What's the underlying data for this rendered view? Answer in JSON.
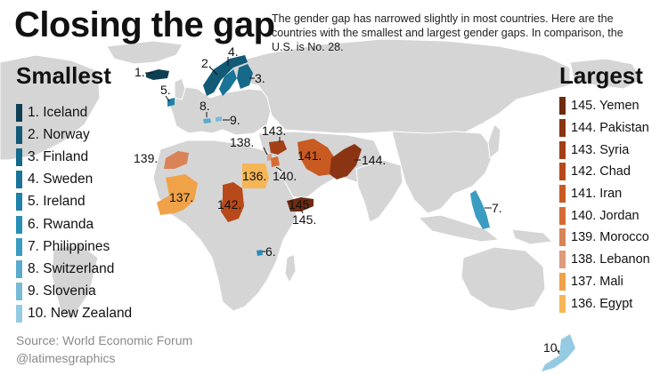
{
  "title": "Closing the gap",
  "intro": "The gender gap has narrowed slightly in most countries. Here are the countries with the smallest and largest gender gaps. In comparison, the U.S. is No. 28.",
  "smallest": {
    "heading": "Smallest",
    "items": [
      {
        "label": "1. Iceland",
        "color": "#0e3f55"
      },
      {
        "label": "2. Norway",
        "color": "#125a76"
      },
      {
        "label": "3. Finland",
        "color": "#17698a"
      },
      {
        "label": "4. Sweden",
        "color": "#1a7497"
      },
      {
        "label": "5. Ireland",
        "color": "#1f82a8"
      },
      {
        "label": "6. Rwanda",
        "color": "#288fb6"
      },
      {
        "label": "7. Philippines",
        "color": "#3b9cc2"
      },
      {
        "label": "8. Switzerland",
        "color": "#5aaacb"
      },
      {
        "label": "9. Slovenia",
        "color": "#79bad6"
      },
      {
        "label": "10. New Zealand",
        "color": "#95cbe2"
      }
    ]
  },
  "largest": {
    "heading": "Largest",
    "items": [
      {
        "label": "145. Yemen",
        "color": "#6f2a10"
      },
      {
        "label": "144. Pakistan",
        "color": "#8a3413"
      },
      {
        "label": "143. Syria",
        "color": "#a33f15"
      },
      {
        "label": "142. Chad",
        "color": "#b8491a"
      },
      {
        "label": "141. Iran",
        "color": "#c85a22"
      },
      {
        "label": "140. Jordan",
        "color": "#d66c34"
      },
      {
        "label": "139. Morocco",
        "color": "#d98357"
      },
      {
        "label": "138. Lebanon",
        "color": "#de9b7c"
      },
      {
        "label": "137. Mali",
        "color": "#f0a248"
      },
      {
        "label": "136. Egypt",
        "color": "#f6b656"
      }
    ]
  },
  "map_labels": {
    "iceland": "1.",
    "norway": "2.",
    "finland": "3.",
    "sweden": "4.",
    "ireland": "5.",
    "rwanda": "6.",
    "philippines": "7.",
    "switzerland": "8.",
    "slovenia": "9.",
    "new_zealand": "10.",
    "yemen": "145",
    "yemen_callout": "145.",
    "pakistan": "144.",
    "syria": "143.",
    "chad": "142.",
    "iran": "141.",
    "jordan": "140.",
    "morocco": "139.",
    "lebanon": "138.",
    "mali": "137.",
    "egypt": "136."
  },
  "source": "Source: World Economic Forum",
  "credit": "@latimesgraphics",
  "colors": {
    "land": "#d5d5d5",
    "ocean": "#ffffff",
    "border": "#ffffff"
  }
}
